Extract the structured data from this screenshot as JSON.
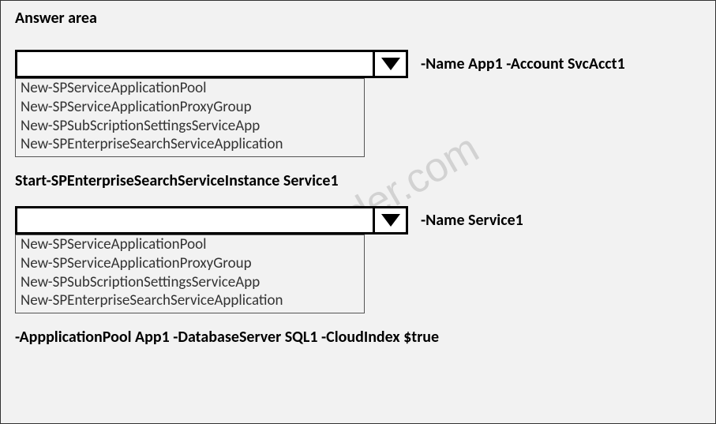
{
  "title": "Answer area",
  "watermark": "certleader.com",
  "dropdown1": {
    "selected": "",
    "suffix": "-Name App1 -Account SvcAcct1",
    "options": [
      "New-SPServiceApplicationPool",
      "New-SPServiceApplicationProxyGroup",
      "New-SPSubScriptionSettingsServiceApp",
      "New-SPEnterpriseSearchServiceApplication"
    ]
  },
  "codeLine1": "Start-SPEnterpriseSearchServiceInstance Service1",
  "dropdown2": {
    "selected": "",
    "suffix": "-Name Service1",
    "options": [
      "New-SPServiceApplicationPool",
      "New-SPServiceApplicationProxyGroup",
      "New-SPSubScriptionSettingsServiceApp",
      "New-SPEnterpriseSearchServiceApplication"
    ]
  },
  "codeLine2": "-AppplicationPool App1 -DatabaseServer SQL1 -CloudIndex $true"
}
